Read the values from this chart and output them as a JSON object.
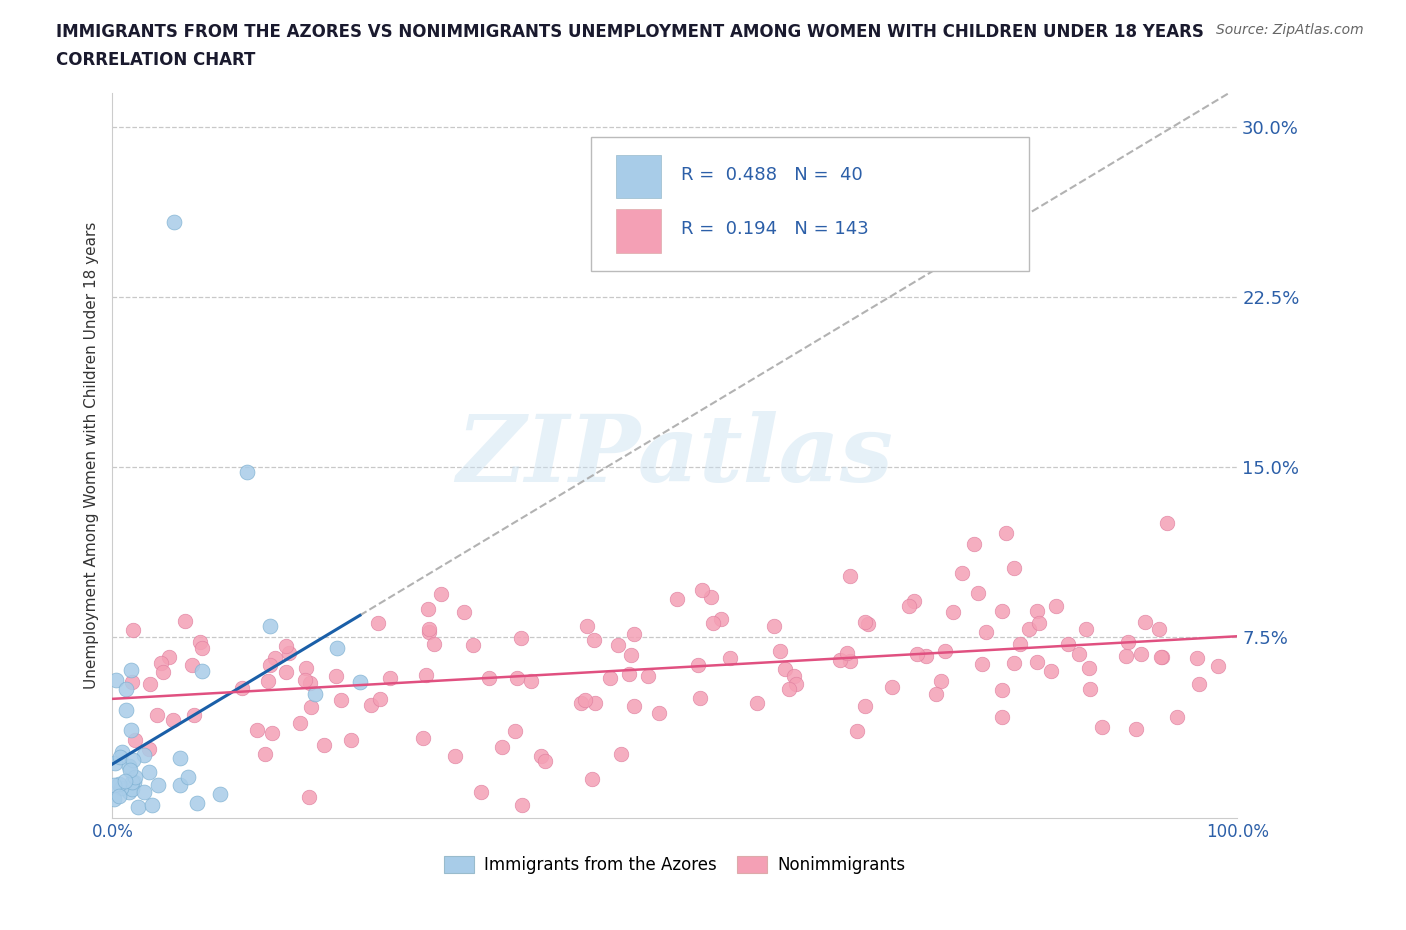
{
  "title_line1": "IMMIGRANTS FROM THE AZORES VS NONIMMIGRANTS UNEMPLOYMENT AMONG WOMEN WITH CHILDREN UNDER 18 YEARS",
  "title_line2": "CORRELATION CHART",
  "source": "Source: ZipAtlas.com",
  "ylabel": "Unemployment Among Women with Children Under 18 years",
  "xlim": [
    0,
    100
  ],
  "ylim": [
    -0.005,
    0.315
  ],
  "yticks": [
    0.0,
    0.075,
    0.15,
    0.225,
    0.3
  ],
  "ytick_labels": [
    "",
    "7.5%",
    "15.0%",
    "22.5%",
    "30.0%"
  ],
  "xtick_positions": [
    0,
    25,
    50,
    75,
    100
  ],
  "xtick_labels": [
    "0.0%",
    "",
    "",
    "",
    "100.0%"
  ],
  "blue_R": 0.488,
  "blue_N": 40,
  "pink_R": 0.194,
  "pink_N": 143,
  "blue_color": "#a8cce8",
  "pink_color": "#f4a0b5",
  "blue_line_color": "#1a5fa8",
  "pink_line_color": "#e05080",
  "blue_dot_edge": "#7aaed0",
  "pink_dot_edge": "#e080a0",
  "legend_label_blue": "Immigrants from the Azores",
  "legend_label_pink": "Nonimmigrants",
  "watermark_text": "ZIPatlas",
  "background_color": "#ffffff",
  "grid_color": "#c8c8c8",
  "title_color": "#1a1a2e",
  "axis_label_color": "#2c5fa8",
  "source_color": "#666666"
}
